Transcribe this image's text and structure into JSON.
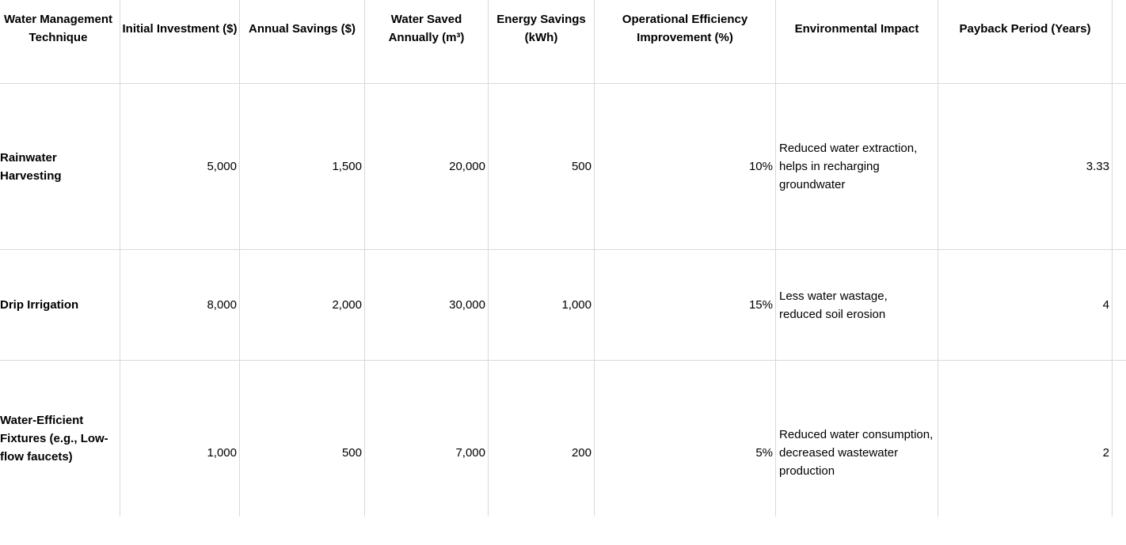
{
  "table": {
    "headers": [
      "Water Management Technique",
      "Initial Investment ($)",
      "Annual Savings ($)",
      "Water Saved Annually (m³)",
      "Energy Savings (kWh)",
      "Operational Efficiency Improvement (%)",
      "Environmental Impact",
      "Payback Period (Years)"
    ],
    "rows": [
      {
        "technique": "Rainwater Harvesting",
        "initial_investment": "5,000",
        "annual_savings": "1,500",
        "water_saved": "20,000",
        "energy_savings": "500",
        "efficiency": "10%",
        "environmental_impact": "Reduced water extraction, helps in recharging groundwater",
        "payback": "3.33"
      },
      {
        "technique": "Drip Irrigation",
        "initial_investment": "8,000",
        "annual_savings": "2,000",
        "water_saved": "30,000",
        "energy_savings": "1,000",
        "efficiency": "15%",
        "environmental_impact": "Less water wastage, reduced soil erosion",
        "payback": "4"
      },
      {
        "technique": "Water-Efficient Fixtures (e.g., Low-flow faucets)",
        "initial_investment": "1,000",
        "annual_savings": "500",
        "water_saved": "7,000",
        "energy_savings": "200",
        "efficiency": "5%",
        "environmental_impact": "Reduced water consumption, decreased wastewater production",
        "payback": "2"
      }
    ]
  }
}
